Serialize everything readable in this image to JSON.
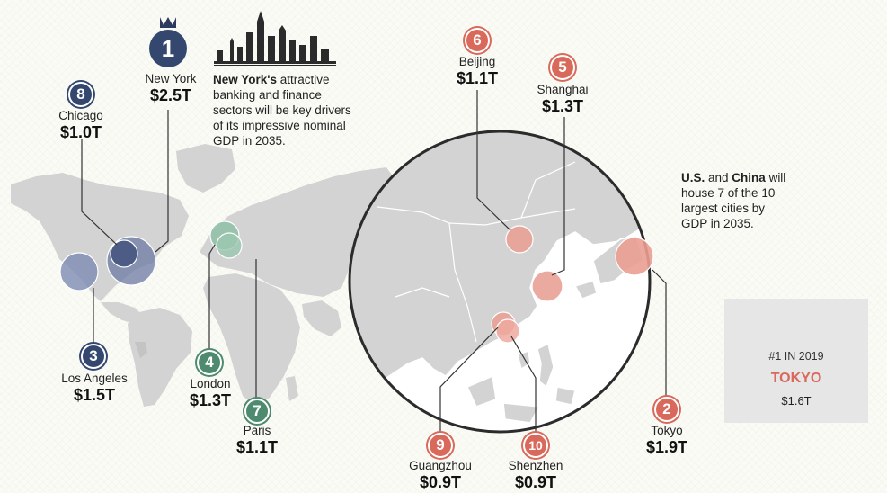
{
  "cities": [
    {
      "rank": "1",
      "name": "New York",
      "value": "$2.5T",
      "color": "#34486f"
    },
    {
      "rank": "8",
      "name": "Chicago",
      "value": "$1.0T",
      "color": "#34486f"
    },
    {
      "rank": "3",
      "name": "Los Angeles",
      "value": "$1.5T",
      "color": "#34486f"
    },
    {
      "rank": "4",
      "name": "London",
      "value": "$1.3T",
      "color": "#4e8a6e"
    },
    {
      "rank": "7",
      "name": "Paris",
      "value": "$1.1T",
      "color": "#4e8a6e"
    },
    {
      "rank": "6",
      "name": "Beijing",
      "value": "$1.1T",
      "color": "#d9695b"
    },
    {
      "rank": "5",
      "name": "Shanghai",
      "value": "$1.3T",
      "color": "#d9695b"
    },
    {
      "rank": "2",
      "name": "Tokyo",
      "value": "$1.9T",
      "color": "#d9695b"
    },
    {
      "rank": "9",
      "name": "Guangzhou",
      "value": "$0.9T",
      "color": "#d9695b"
    },
    {
      "rank": "10",
      "name": "Shenzhen",
      "value": "$0.9T",
      "color": "#d9695b"
    }
  ],
  "notes": {
    "ny_bold": "New York's",
    "ny_rest_1": " attractive",
    "ny_line_2": "banking and finance",
    "ny_line_3": "sectors will be key drivers",
    "ny_line_4": "of its impressive nominal",
    "ny_line_5": "GDP in 2035.",
    "us_bold": "U.S.",
    "us_and": " and ",
    "china_bold": "China",
    "us_rest_1": " will",
    "us_line_2": "house 7 of the 10",
    "us_line_3": "largest cities by",
    "us_line_4": "GDP in 2035."
  },
  "rank_box": {
    "label": "#1 IN 2019",
    "city": "TOKYO",
    "value": "$1.6T",
    "icon": "calendar-icon"
  },
  "icons": {
    "crown": "crown-icon",
    "skyline": "skyline-icon"
  },
  "colors": {
    "us": "#34486f",
    "europe": "#4e8a6e",
    "asia": "#d9695b",
    "land": "#d2d2d2",
    "tokyo": "#d9695b"
  }
}
